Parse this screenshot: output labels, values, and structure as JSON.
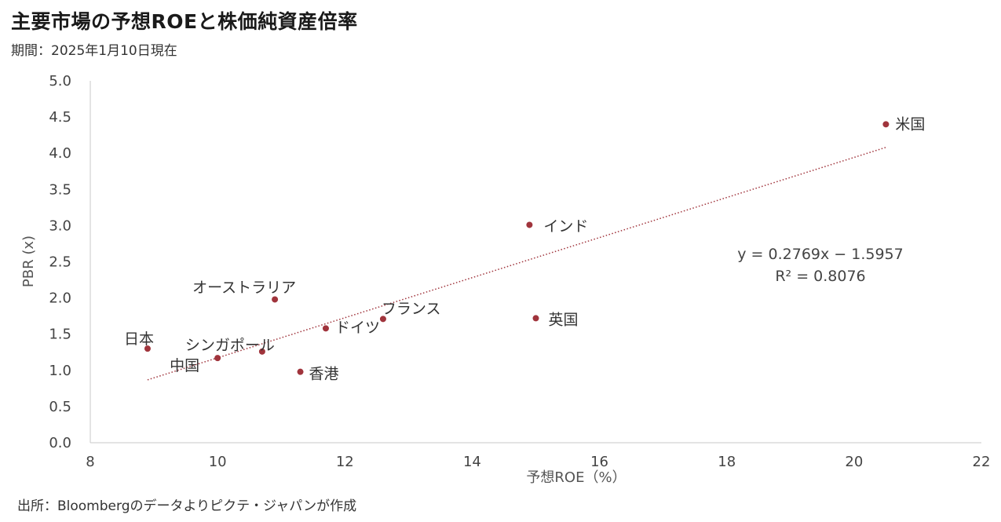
{
  "title": "主要市場の予想ROEと株価純資産倍率",
  "subtitle": "期間：2025年1月10日現在",
  "source": "出所：Bloombergのデータよりピクテ・ジャパンが作成",
  "chart_data": {
    "type": "scatter",
    "title": "主要市場の予想ROEと株価純資産倍率",
    "xlabel": "予想ROE（%）",
    "ylabel": "PBR (x)",
    "xlim": [
      8,
      22
    ],
    "ylim": [
      0.0,
      5.0
    ],
    "xticks": [
      "8",
      "10",
      "12",
      "14",
      "16",
      "18",
      "20",
      "22"
    ],
    "yticks": [
      "0.0",
      "0.5",
      "1.0",
      "1.5",
      "2.0",
      "2.5",
      "3.0",
      "3.5",
      "4.0",
      "4.5",
      "5.0"
    ],
    "grid": false,
    "point_color": "#a0343c",
    "trendline_color": "#a0343c",
    "points": [
      {
        "label": "米国",
        "x": 20.5,
        "y": 4.4
      },
      {
        "label": "インド",
        "x": 14.9,
        "y": 3.01
      },
      {
        "label": "英国",
        "x": 15.0,
        "y": 1.72
      },
      {
        "label": "フランス",
        "x": 12.6,
        "y": 1.71
      },
      {
        "label": "ドイツ",
        "x": 11.7,
        "y": 1.58
      },
      {
        "label": "オーストラリア",
        "x": 10.9,
        "y": 1.98
      },
      {
        "label": "シンガポール",
        "x": 10.7,
        "y": 1.26
      },
      {
        "label": "日本",
        "x": 8.9,
        "y": 1.3
      },
      {
        "label": "中国",
        "x": 10.0,
        "y": 1.17
      },
      {
        "label": "香港",
        "x": 11.3,
        "y": 0.98
      }
    ],
    "trendline": {
      "slope": 0.2769,
      "intercept": -1.5957,
      "x_range": [
        8.9,
        20.5
      ],
      "equation": "y = 0.2769x − 1.5957",
      "r2": "R² = 0.8076"
    }
  }
}
